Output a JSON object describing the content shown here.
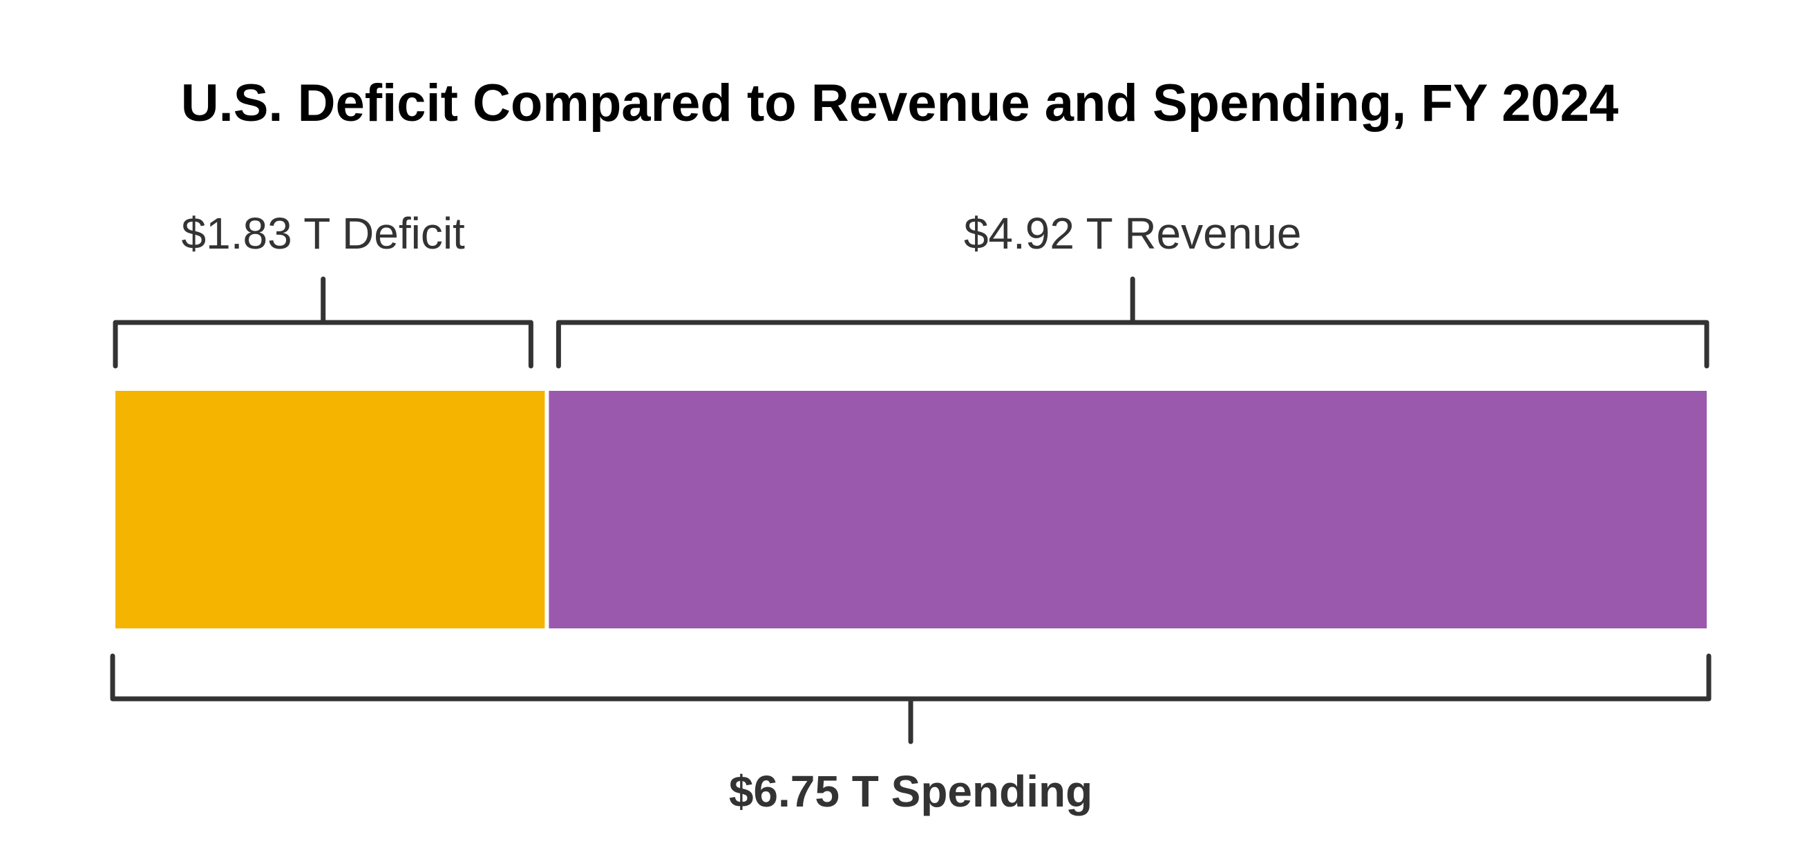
{
  "chart_data": {
    "type": "bar",
    "orientation": "horizontal-stacked",
    "title": "U.S. Deficit Compared to Revenue and Spending, FY 2024",
    "unit": "trillion USD",
    "segments": [
      {
        "name": "Deficit",
        "value": 1.83,
        "label": "$1.83 T Deficit",
        "color": "#F4B400"
      },
      {
        "name": "Revenue",
        "value": 4.92,
        "label": "$4.92 T Revenue",
        "color": "#9B59AE"
      }
    ],
    "total": {
      "name": "Spending",
      "value": 6.75,
      "label": "$6.75 T Spending"
    },
    "bracket_color": "#333333"
  }
}
